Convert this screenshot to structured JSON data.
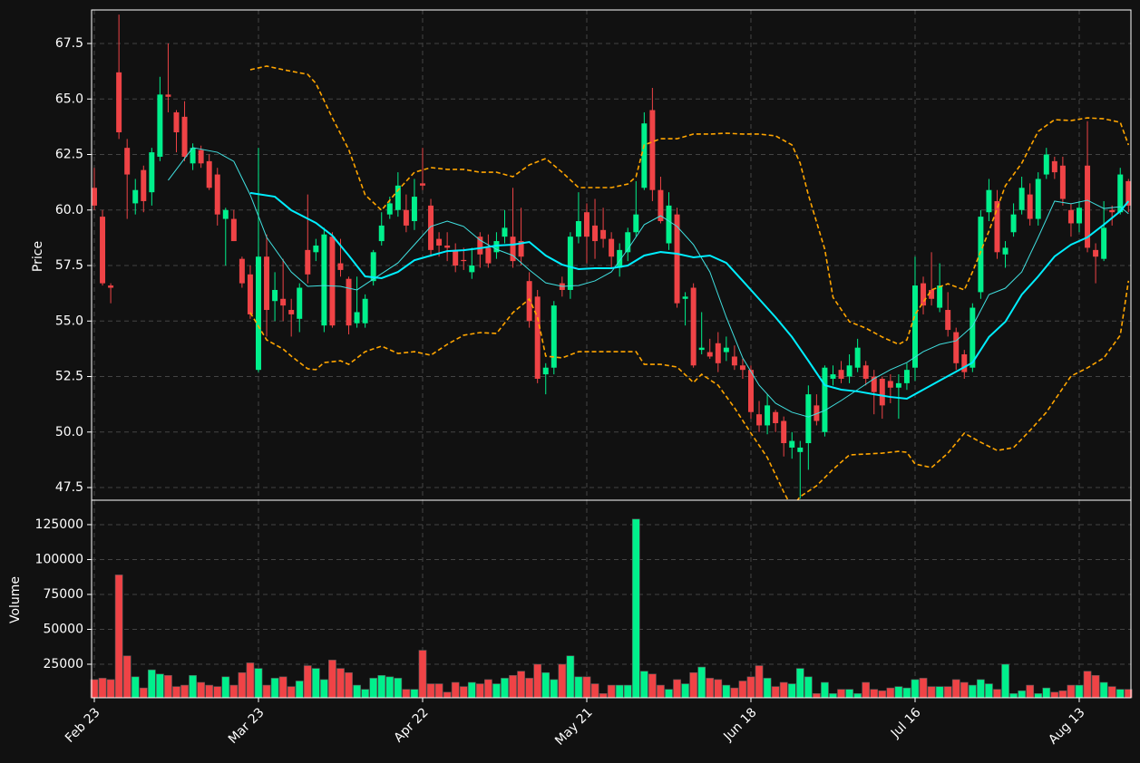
{
  "chart_data": {
    "type": "candlestick",
    "categories": [
      "Feb 23",
      null,
      null,
      null,
      null,
      null,
      null,
      null,
      null,
      null,
      null,
      null,
      null,
      null,
      null,
      null,
      null,
      null,
      null,
      null,
      "Mar 23",
      null,
      null,
      null,
      null,
      null,
      null,
      null,
      null,
      null,
      null,
      null,
      null,
      null,
      null,
      null,
      null,
      null,
      null,
      null,
      "Apr 22",
      null,
      null,
      null,
      null,
      null,
      null,
      null,
      null,
      null,
      null,
      null,
      null,
      null,
      null,
      null,
      null,
      null,
      null,
      null,
      "May 21",
      null,
      null,
      null,
      null,
      null,
      null,
      null,
      null,
      null,
      null,
      null,
      null,
      null,
      null,
      null,
      null,
      null,
      null,
      null,
      "Jun 18",
      null,
      null,
      null,
      null,
      null,
      null,
      null,
      null,
      null,
      null,
      null,
      null,
      null,
      null,
      null,
      null,
      null,
      null,
      null,
      "Jul 16",
      null,
      null,
      null,
      null,
      null,
      null,
      null,
      null,
      null,
      null,
      null,
      null,
      null,
      null,
      null,
      null,
      null,
      null,
      null,
      "Aug 13",
      null,
      null,
      null,
      null,
      null,
      null
    ],
    "open": [
      61.0,
      59.7,
      56.6,
      66.2,
      62.8,
      60.3,
      61.8,
      60.8,
      62.4,
      65.2,
      64.4,
      64.2,
      62.1,
      62.7,
      62.2,
      61.6,
      59.6,
      59.6,
      57.8,
      57.1,
      52.8,
      57.9,
      55.9,
      56.0,
      55.5,
      55.1,
      58.2,
      58.1,
      54.8,
      58.8,
      57.6,
      56.9,
      54.9,
      54.9,
      56.8,
      58.6,
      59.8,
      60.0,
      60.0,
      59.5,
      61.2,
      60.2,
      58.7,
      58.4,
      58.2,
      57.75,
      57.2,
      58.8,
      58.3,
      58.1,
      58.8,
      58.8,
      58.6,
      56.8,
      56.1,
      52.6,
      52.9,
      56.7,
      56.4,
      58.8,
      59.9,
      59.3,
      59.1,
      58.7,
      57.4,
      58.1,
      59.0,
      61.0,
      64.5,
      60.9,
      58.5,
      59.8,
      56.0,
      56.5,
      53.7,
      53.6,
      54.0,
      53.6,
      53.4,
      53.0,
      52.8,
      50.8,
      50.3,
      50.9,
      50.5,
      49.3,
      49.1,
      49.5,
      51.2,
      50.0,
      52.4,
      52.8,
      52.5,
      52.9,
      53.0,
      52.5,
      52.4,
      52.3,
      52.0,
      52.2,
      52.9,
      56.7,
      56.4,
      55.6,
      55.5,
      54.5,
      53.5,
      52.9,
      56.3,
      59.9,
      60.4,
      58.0,
      59.0,
      60.0,
      60.7,
      59.6,
      61.6,
      62.2,
      62.0,
      60.0,
      59.4,
      62.0,
      58.2,
      57.8,
      60.0,
      59.9,
      61.3
    ],
    "high": [
      61.9,
      60.0,
      56.7,
      68.8,
      63.2,
      61.4,
      62.0,
      62.8,
      66.0,
      67.5,
      64.5,
      64.9,
      63.0,
      62.9,
      62.5,
      61.9,
      60.1,
      60.0,
      57.9,
      57.5,
      62.8,
      58.9,
      57.2,
      57.8,
      56.0,
      56.7,
      60.7,
      58.7,
      59.2,
      59.0,
      58.7,
      57.0,
      57.0,
      56.2,
      58.2,
      59.9,
      60.6,
      61.7,
      60.7,
      61.4,
      62.8,
      60.5,
      59.0,
      59.0,
      58.5,
      58.3,
      58.3,
      59.0,
      58.9,
      59.0,
      60.0,
      61.0,
      60.1,
      57.2,
      56.4,
      53.1,
      55.9,
      57.0,
      59.0,
      60.8,
      60.3,
      60.5,
      60.1,
      59.0,
      58.5,
      59.2,
      61.3,
      64.4,
      65.5,
      61.5,
      60.8,
      60.1,
      56.3,
      56.7,
      55.4,
      54.2,
      54.5,
      54.3,
      53.9,
      53.3,
      53.0,
      51.4,
      51.7,
      51.0,
      50.7,
      50.0,
      49.6,
      52.1,
      51.7,
      53.0,
      53.0,
      53.2,
      53.5,
      54.2,
      53.2,
      52.8,
      52.5,
      52.6,
      52.6,
      53.1,
      57.9,
      57.0,
      58.1,
      57.6,
      56.3,
      54.7,
      53.7,
      55.8,
      60.0,
      61.4,
      60.9,
      58.6,
      60.3,
      61.5,
      61.2,
      61.7,
      62.8,
      62.4,
      62.4,
      60.3,
      60.4,
      64.0,
      58.5,
      60.4,
      60.2,
      61.9,
      61.4
    ],
    "low": [
      60.0,
      56.6,
      55.8,
      63.2,
      59.6,
      59.8,
      59.9,
      60.2,
      62.2,
      64.4,
      62.6,
      62.2,
      61.8,
      61.9,
      60.9,
      59.3,
      57.5,
      58.6,
      56.5,
      55.1,
      52.7,
      54.3,
      55.0,
      55.0,
      54.3,
      54.5,
      56.7,
      57.7,
      54.5,
      54.7,
      57.0,
      54.4,
      54.7,
      54.7,
      56.6,
      58.4,
      59.6,
      59.7,
      59.0,
      59.1,
      60.9,
      57.9,
      57.9,
      57.7,
      57.2,
      57.3,
      56.9,
      57.4,
      57.4,
      57.8,
      58.5,
      57.4,
      57.5,
      54.7,
      52.2,
      51.7,
      52.6,
      56.1,
      56.0,
      58.5,
      57.6,
      57.8,
      58.3,
      57.4,
      57.0,
      57.7,
      58.8,
      60.9,
      60.4,
      59.4,
      58.2,
      55.6,
      54.8,
      52.9,
      53.5,
      53.3,
      52.7,
      53.2,
      52.8,
      52.4,
      50.6,
      50.0,
      49.9,
      50.0,
      48.9,
      48.8,
      47.0,
      48.3,
      50.3,
      49.8,
      52.1,
      52.2,
      52.2,
      52.7,
      52.1,
      50.8,
      50.6,
      51.3,
      50.6,
      51.9,
      52.3,
      55.3,
      55.7,
      55.4,
      54.3,
      52.8,
      52.4,
      52.7,
      56.0,
      59.5,
      57.8,
      57.4,
      58.8,
      59.8,
      59.3,
      59.3,
      61.4,
      61.4,
      60.2,
      58.8,
      59.0,
      58.1,
      56.7,
      57.7,
      59.3,
      59.8,
      59.9
    ],
    "close": [
      60.2,
      56.7,
      56.5,
      63.5,
      61.6,
      60.9,
      60.4,
      62.6,
      65.2,
      65.1,
      63.5,
      62.4,
      62.8,
      62.1,
      61.0,
      59.8,
      60.0,
      58.6,
      56.7,
      55.3,
      57.9,
      55.5,
      56.4,
      55.7,
      55.3,
      56.5,
      57.1,
      58.4,
      58.9,
      54.8,
      57.3,
      54.8,
      55.4,
      56.0,
      58.1,
      59.3,
      60.3,
      61.1,
      59.3,
      60.6,
      61.1,
      58.2,
      58.4,
      58.3,
      57.5,
      57.7,
      57.5,
      58.0,
      57.6,
      58.6,
      59.2,
      57.7,
      57.9,
      55.0,
      52.4,
      52.9,
      55.7,
      56.4,
      58.8,
      59.5,
      58.8,
      58.6,
      58.7,
      57.9,
      58.2,
      59.0,
      59.8,
      63.9,
      60.9,
      59.5,
      60.2,
      55.8,
      56.1,
      53.0,
      53.8,
      53.4,
      53.1,
      53.8,
      53.0,
      52.8,
      50.9,
      50.3,
      51.2,
      50.4,
      49.5,
      49.6,
      49.3,
      51.7,
      50.5,
      52.9,
      52.6,
      52.4,
      53.0,
      53.8,
      52.4,
      51.8,
      51.2,
      52.0,
      52.2,
      52.8,
      56.6,
      55.7,
      56.0,
      56.6,
      54.6,
      53.1,
      52.7,
      55.6,
      59.7,
      60.9,
      58.1,
      58.3,
      59.8,
      61.0,
      59.6,
      61.4,
      62.5,
      61.7,
      60.5,
      59.4,
      60.1,
      58.3,
      57.9,
      59.2,
      59.9,
      61.6,
      60.2
    ],
    "up_color": "#00f08c",
    "down_color": "#ef4346",
    "ylabel": "Price",
    "grid": true,
    "xlim": [
      -0.33,
      126.3
    ],
    "ylim": [
      46.93,
      69.01
    ],
    "yticks": [
      47.5,
      {
        "value": 50,
        "label": "50.0"
      },
      52.5,
      {
        "value": 55,
        "label": "55.0"
      },
      57.5,
      {
        "value": 60,
        "label": "60.0"
      },
      62.5,
      {
        "value": 65,
        "label": "65.0"
      },
      67.5
    ],
    "overlays": [
      {
        "color": "#40e0e0",
        "linestyle": "thin",
        "x": [
          9,
          12,
          15,
          17,
          19,
          21,
          24,
          26,
          28,
          30,
          32,
          34,
          37,
          39,
          41,
          43,
          45,
          47,
          49,
          51,
          53,
          55,
          57,
          59,
          61,
          63,
          65,
          67,
          69,
          71,
          73,
          75,
          77,
          79,
          81,
          83,
          85,
          87,
          89,
          91,
          93,
          95,
          97,
          99,
          101,
          103,
          105,
          107,
          109,
          111,
          113,
          115,
          117,
          119,
          121,
          123,
          125,
          126
        ],
        "values": [
          61.34,
          62.81,
          62.6,
          62.19,
          60.68,
          58.77,
          57.21,
          56.56,
          56.6,
          56.56,
          56.4,
          56.89,
          57.62,
          58.44,
          59.26,
          59.5,
          59.26,
          58.64,
          58.23,
          57.95,
          57.3,
          56.72,
          56.56,
          56.6,
          56.81,
          57.21,
          58.23,
          59.34,
          59.74,
          59.26,
          58.44,
          57.21,
          55.17,
          53.34,
          52.11,
          51.3,
          50.89,
          50.68,
          50.97,
          51.42,
          51.91,
          52.4,
          52.81,
          53.13,
          53.62,
          53.95,
          54.11,
          54.77,
          56.19,
          56.48,
          57.21,
          58.77,
          60.4,
          60.28,
          60.44,
          60.07,
          60.15,
          59.83
        ]
      },
      {
        "color": "#00eeff",
        "linestyle": "thick",
        "x": [
          19,
          22,
          24,
          27,
          29,
          31,
          33,
          35,
          37,
          39,
          41,
          43,
          45,
          47,
          49,
          51,
          53,
          55,
          57,
          59,
          61,
          63,
          65,
          67,
          69,
          71,
          73,
          75,
          77,
          79,
          81,
          83,
          85,
          87,
          89,
          91,
          93,
          95,
          97,
          99,
          101,
          103,
          105,
          107,
          109,
          111,
          113,
          115,
          117,
          119,
          121,
          123,
          125,
          126
        ],
        "values": [
          60.77,
          60.6,
          59.99,
          59.42,
          58.85,
          57.95,
          57.01,
          56.93,
          57.21,
          57.74,
          57.95,
          58.15,
          58.19,
          58.28,
          58.4,
          58.44,
          58.56,
          57.95,
          57.54,
          57.34,
          57.38,
          57.38,
          57.5,
          57.95,
          58.11,
          58.03,
          57.87,
          57.95,
          57.62,
          56.81,
          55.99,
          55.17,
          54.28,
          53.21,
          52.11,
          51.91,
          51.83,
          51.7,
          51.58,
          51.5,
          51.91,
          52.32,
          52.72,
          53.13,
          54.28,
          54.97,
          56.19,
          57.01,
          57.91,
          58.44,
          58.77,
          59.34,
          59.95,
          60.4
        ]
      },
      {
        "color": "#ffa500",
        "linestyle": "dashed",
        "x": [
          19,
          21,
          23,
          26,
          27,
          29,
          31,
          33,
          35,
          37,
          39,
          41,
          43,
          45,
          47,
          49,
          51,
          53,
          55,
          57,
          59,
          61,
          63,
          65,
          66,
          67,
          69,
          71,
          73,
          75,
          77,
          79,
          81,
          83,
          85,
          86,
          87,
          89,
          90,
          92,
          94,
          96,
          98,
          99,
          100,
          102,
          104,
          106,
          107,
          109,
          111,
          113,
          115,
          117,
          119,
          121,
          123,
          125,
          126
        ],
        "values": [
          66.32,
          66.48,
          66.32,
          66.11,
          65.7,
          64.15,
          62.72,
          60.68,
          59.99,
          60.89,
          61.7,
          61.91,
          61.83,
          61.83,
          61.7,
          61.7,
          61.5,
          62.03,
          62.32,
          61.7,
          61.01,
          61.01,
          61.01,
          61.17,
          61.5,
          62.93,
          63.21,
          63.21,
          63.42,
          63.42,
          63.46,
          63.42,
          63.42,
          63.34,
          62.93,
          62.11,
          60.68,
          58.23,
          56.07,
          54.97,
          54.68,
          54.28,
          53.95,
          54.15,
          55.3,
          56.4,
          56.68,
          56.4,
          57.21,
          59.05,
          61.09,
          62.11,
          63.54,
          64.07,
          64.03,
          64.15,
          64.11,
          63.95,
          62.93
        ]
      },
      {
        "color": "#ffa500",
        "linestyle": "dashed",
        "x": [
          19,
          21,
          23,
          24,
          26,
          27,
          28,
          30,
          31,
          33,
          35,
          37,
          39,
          41,
          43,
          45,
          47,
          49,
          51,
          53,
          54,
          55,
          57,
          59,
          61,
          63,
          65,
          66,
          67,
          69,
          71,
          73,
          74,
          76,
          78,
          80,
          82,
          84,
          85,
          86,
          88,
          90,
          92,
          94,
          96,
          98,
          99,
          100,
          102,
          104,
          106,
          108,
          110,
          112,
          114,
          116,
          119,
          121,
          123,
          125,
          126
        ],
        "values": [
          55.38,
          54.15,
          53.74,
          53.42,
          52.85,
          52.81,
          53.13,
          53.21,
          53.05,
          53.62,
          53.87,
          53.54,
          53.62,
          53.46,
          53.95,
          54.36,
          54.48,
          54.44,
          55.38,
          55.99,
          55.17,
          53.42,
          53.34,
          53.62,
          53.62,
          53.62,
          53.62,
          53.62,
          53.05,
          53.05,
          52.93,
          52.23,
          52.6,
          52.11,
          51.09,
          49.95,
          48.85,
          47.3,
          46.6,
          47.09,
          47.58,
          48.32,
          48.97,
          49.01,
          49.05,
          49.13,
          49.09,
          48.56,
          48.4,
          49.05,
          49.95,
          49.54,
          49.17,
          49.3,
          50.07,
          50.89,
          52.52,
          52.89,
          53.34,
          54.36,
          56.81
        ]
      }
    ],
    "volume": {
      "ylabel": "Volume",
      "ylim": [
        974,
        142500
      ],
      "yticks": [
        25000,
        50000,
        75000,
        100000,
        125000
      ],
      "values": [
        14000,
        15000,
        14000,
        89000,
        31000,
        16000,
        8000,
        21000,
        18000,
        17000,
        9000,
        10000,
        17000,
        12000,
        10000,
        9000,
        16000,
        10000,
        19000,
        26000,
        22000,
        10000,
        15000,
        16000,
        9000,
        13000,
        24000,
        22000,
        14000,
        28000,
        22000,
        19000,
        10000,
        7000,
        15000,
        17000,
        16000,
        15000,
        7000,
        7000,
        35000,
        11000,
        11000,
        5000,
        12000,
        9000,
        12000,
        11000,
        14000,
        11000,
        15000,
        17000,
        20000,
        15000,
        25000,
        19000,
        14000,
        25000,
        31000,
        16000,
        16000,
        11000,
        4000,
        10000,
        10000,
        10000,
        129000,
        20000,
        18000,
        10000,
        7000,
        14000,
        11000,
        19000,
        23000,
        15000,
        14000,
        10000,
        8000,
        13000,
        16000,
        24000,
        15000,
        9000,
        12000,
        11000,
        22000,
        16000,
        4000,
        12000,
        4000,
        7000,
        7000,
        4000,
        12000,
        7000,
        6000,
        8000,
        9000,
        8000,
        14000,
        15000,
        9000,
        9000,
        9000,
        14000,
        12000,
        10000,
        14000,
        11000,
        7000,
        25000,
        4000,
        6000,
        10000,
        4000,
        8000,
        5000,
        6000,
        10000,
        10000,
        20000,
        17000,
        12000,
        9000,
        7000,
        7000
      ]
    }
  }
}
